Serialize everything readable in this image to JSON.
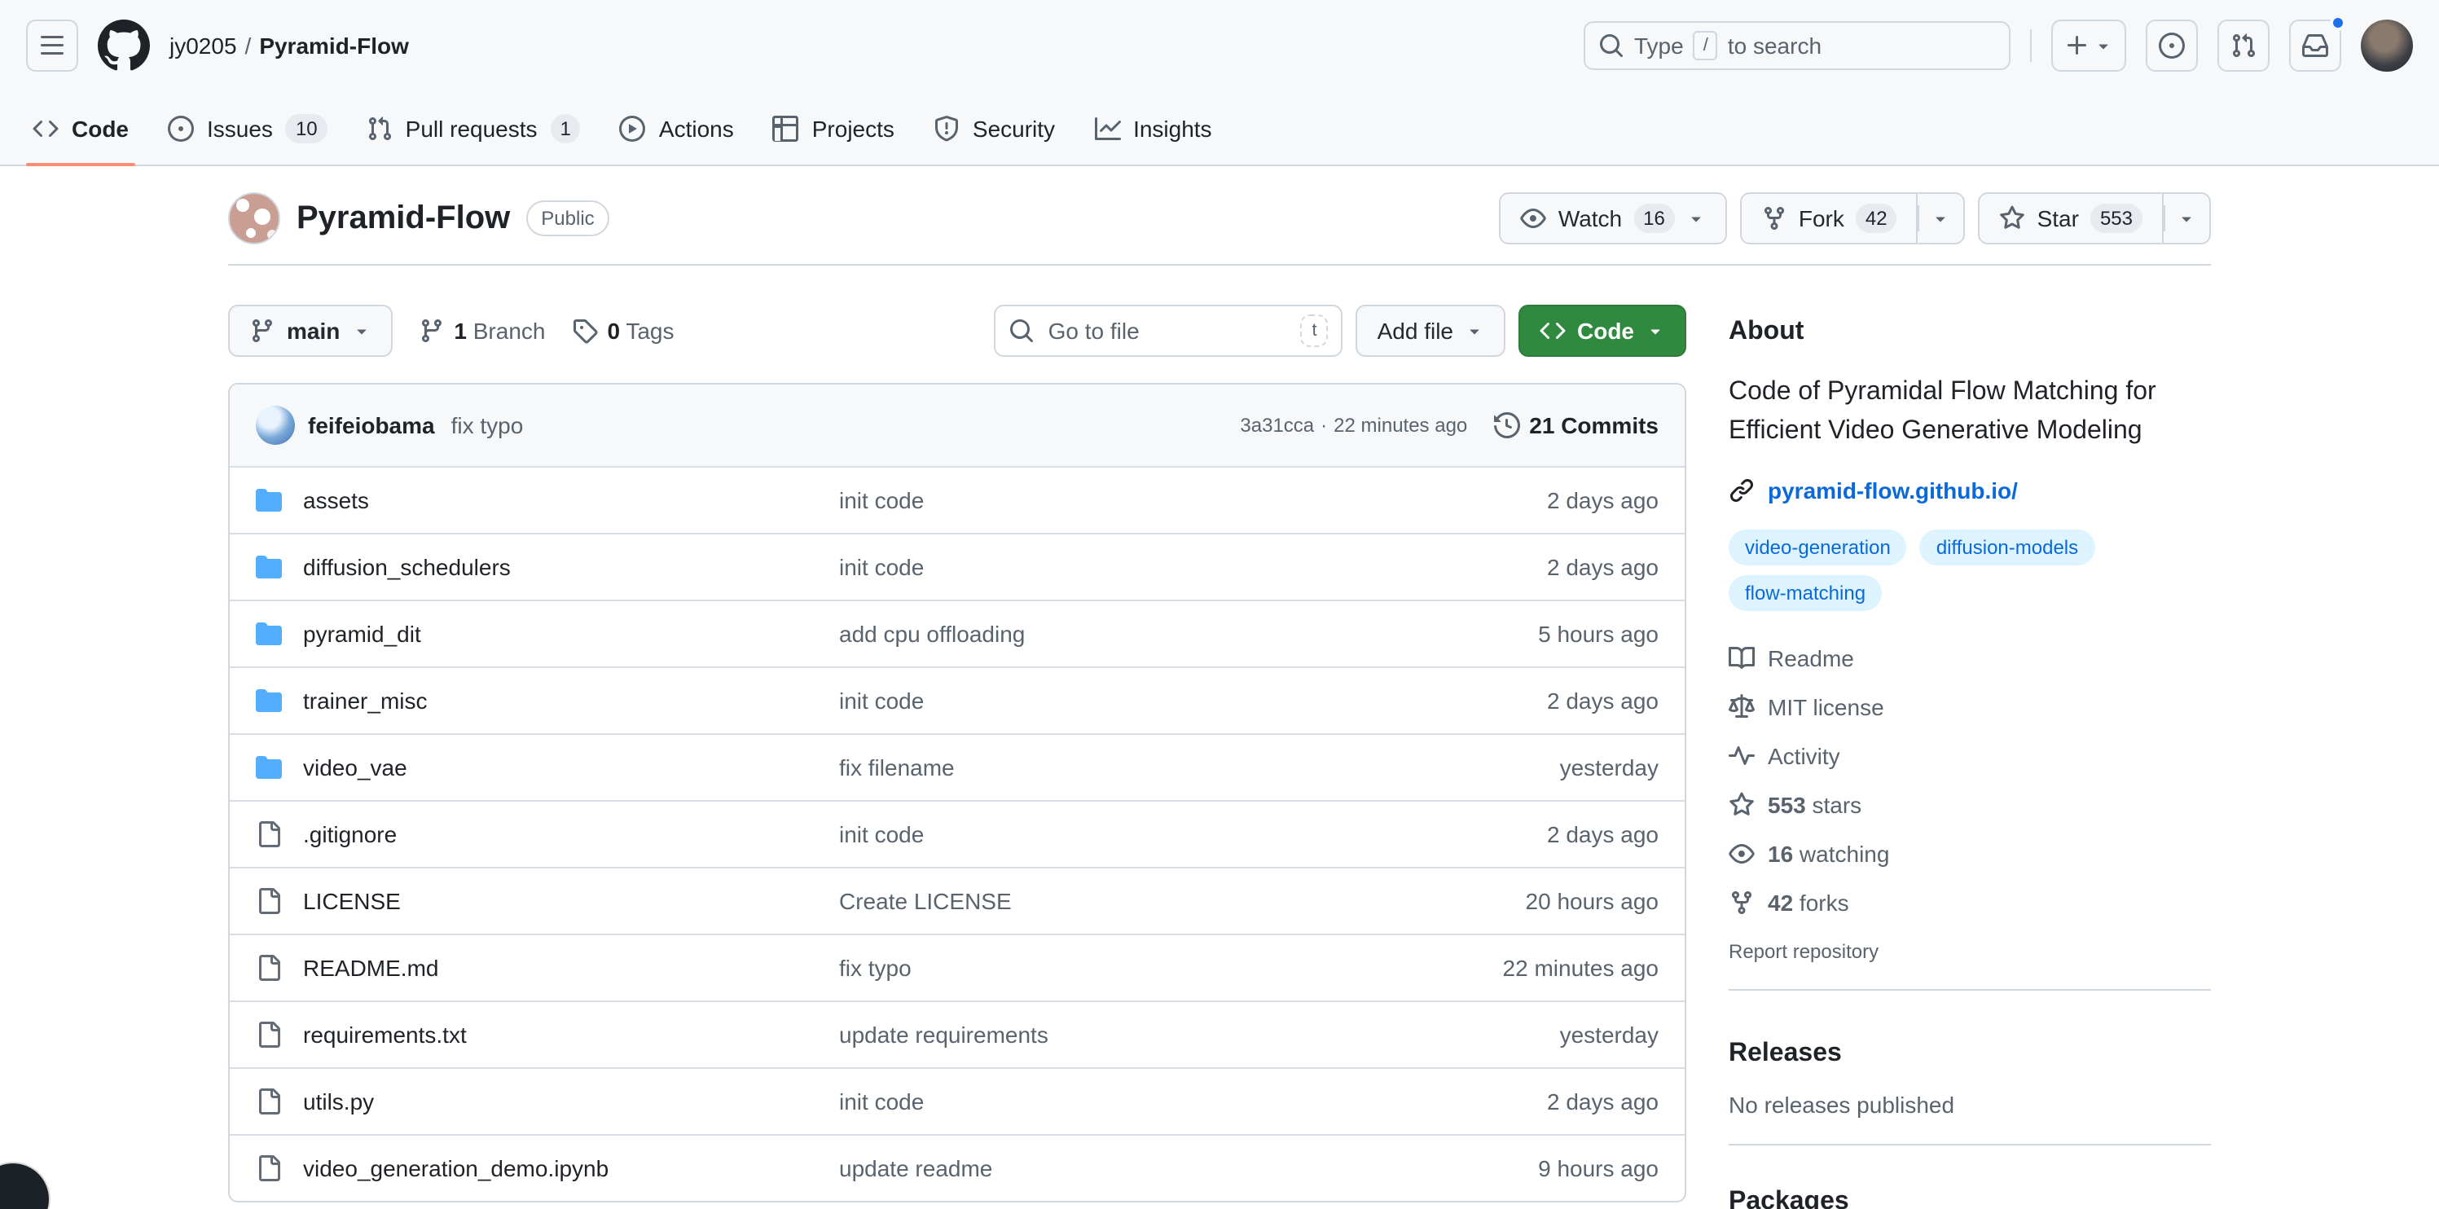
{
  "colors": {
    "header_bg": "#f6f8fa",
    "border": "#d0d7de",
    "row_border": "#d8dee4",
    "text": "#1f2328",
    "muted": "#59636e",
    "link": "#0969da",
    "tab_underline": "#fd8c73",
    "primary_btn": "#2f8a3f",
    "folder_icon": "#54aeff",
    "topic_bg": "#ddf4ff",
    "notification_dot": "#1f6feb"
  },
  "header": {
    "breadcrumb": {
      "owner": "jy0205",
      "separator": "/",
      "repo": "Pyramid-Flow"
    },
    "search": {
      "prefix": "Type",
      "key": "/",
      "suffix": "to search"
    }
  },
  "nav_tabs": [
    {
      "id": "code",
      "icon": "code",
      "label": "Code",
      "badge": "",
      "active": true
    },
    {
      "id": "issues",
      "icon": "issue",
      "label": "Issues",
      "badge": "10",
      "active": false
    },
    {
      "id": "pull-requests",
      "icon": "pr",
      "label": "Pull requests",
      "badge": "1",
      "active": false
    },
    {
      "id": "actions",
      "icon": "play",
      "label": "Actions",
      "badge": "",
      "active": false
    },
    {
      "id": "projects",
      "icon": "table",
      "label": "Projects",
      "badge": "",
      "active": false
    },
    {
      "id": "security",
      "icon": "shield",
      "label": "Security",
      "badge": "",
      "active": false
    },
    {
      "id": "insights",
      "icon": "graph",
      "label": "Insights",
      "badge": "",
      "active": false
    }
  ],
  "repo": {
    "title": "Pyramid-Flow",
    "visibility": "Public"
  },
  "actions": {
    "watch": {
      "label": "Watch",
      "count": "16"
    },
    "fork": {
      "label": "Fork",
      "count": "42"
    },
    "star": {
      "label": "Star",
      "count": "553"
    }
  },
  "toolbar": {
    "branch": "main",
    "branches_count": "1",
    "branches_label": "Branch",
    "tags_count": "0",
    "tags_label": "Tags",
    "goto_placeholder": "Go to file",
    "goto_key": "t",
    "add_file": "Add file",
    "code_button": "Code"
  },
  "commit_bar": {
    "author": "feifeiobama",
    "message": "fix typo",
    "sha": "3a31cca",
    "dot": "·",
    "time": "22 minutes ago",
    "history": "21 Commits"
  },
  "files": [
    {
      "name": "assets",
      "type": "dir",
      "message": "init code",
      "time": "2 days ago"
    },
    {
      "name": "diffusion_schedulers",
      "type": "dir",
      "message": "init code",
      "time": "2 days ago"
    },
    {
      "name": "pyramid_dit",
      "type": "dir",
      "message": "add cpu offloading",
      "time": "5 hours ago"
    },
    {
      "name": "trainer_misc",
      "type": "dir",
      "message": "init code",
      "time": "2 days ago"
    },
    {
      "name": "video_vae",
      "type": "dir",
      "message": "fix filename",
      "time": "yesterday"
    },
    {
      "name": ".gitignore",
      "type": "file",
      "message": "init code",
      "time": "2 days ago"
    },
    {
      "name": "LICENSE",
      "type": "file",
      "message": "Create LICENSE",
      "time": "20 hours ago"
    },
    {
      "name": "README.md",
      "type": "file",
      "message": "fix typo",
      "time": "22 minutes ago"
    },
    {
      "name": "requirements.txt",
      "type": "file",
      "message": "update requirements",
      "time": "yesterday"
    },
    {
      "name": "utils.py",
      "type": "file",
      "message": "init code",
      "time": "2 days ago"
    },
    {
      "name": "video_generation_demo.ipynb",
      "type": "file",
      "message": "update readme",
      "time": "9 hours ago"
    }
  ],
  "sidebar": {
    "about_title": "About",
    "description": "Code of Pyramidal Flow Matching for Efficient Video Generative Modeling",
    "website": "pyramid-flow.github.io/",
    "topics": [
      "video-generation",
      "diffusion-models",
      "flow-matching"
    ],
    "meta": [
      {
        "icon": "book",
        "text": "Readme",
        "count": ""
      },
      {
        "icon": "law",
        "text": "MIT license",
        "count": ""
      },
      {
        "icon": "pulse",
        "text": "Activity",
        "count": ""
      },
      {
        "icon": "star",
        "text": "stars",
        "count": "553"
      },
      {
        "icon": "eye",
        "text": "watching",
        "count": "16"
      },
      {
        "icon": "fork",
        "text": "forks",
        "count": "42"
      }
    ],
    "report": "Report repository",
    "releases_title": "Releases",
    "releases_empty": "No releases published",
    "packages_title": "Packages"
  }
}
